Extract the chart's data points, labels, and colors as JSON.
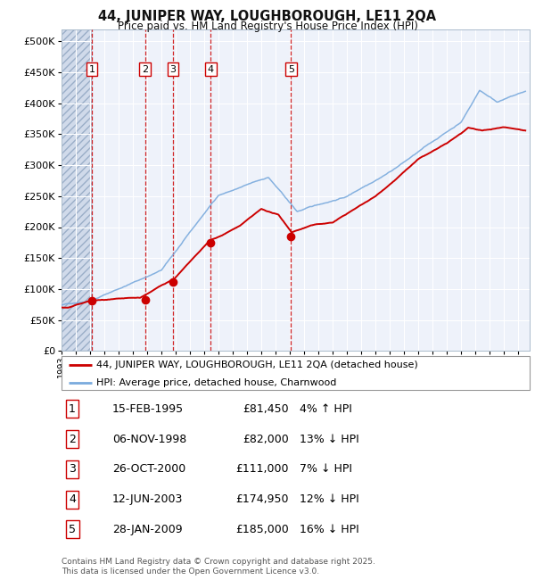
{
  "title": "44, JUNIPER WAY, LOUGHBOROUGH, LE11 2QA",
  "subtitle": "Price paid vs. HM Land Registry's House Price Index (HPI)",
  "xlim": [
    1993.0,
    2025.8
  ],
  "ylim": [
    0,
    520000
  ],
  "yticks": [
    0,
    50000,
    100000,
    150000,
    200000,
    250000,
    300000,
    350000,
    400000,
    450000,
    500000
  ],
  "ytick_labels": [
    "£0",
    "£50K",
    "£100K",
    "£150K",
    "£200K",
    "£250K",
    "£300K",
    "£350K",
    "£400K",
    "£450K",
    "£500K"
  ],
  "plot_bg": "#eef2fa",
  "hatch_color": "#d0daea",
  "grid_color": "#ffffff",
  "sale_dates": [
    1995.12,
    1998.85,
    2000.82,
    2003.45,
    2009.08
  ],
  "sale_prices": [
    81450,
    82000,
    111000,
    174950,
    185000
  ],
  "sale_labels": [
    "1",
    "2",
    "3",
    "4",
    "5"
  ],
  "red_line_color": "#cc0000",
  "blue_line_color": "#7aaadd",
  "dot_color": "#cc0000",
  "vline_color": "#cc0000",
  "legend_items": [
    "44, JUNIPER WAY, LOUGHBOROUGH, LE11 2QA (detached house)",
    "HPI: Average price, detached house, Charnwood"
  ],
  "table_rows": [
    [
      "1",
      "15-FEB-1995",
      "£81,450",
      "4% ↑ HPI"
    ],
    [
      "2",
      "06-NOV-1998",
      "£82,000",
      "13% ↓ HPI"
    ],
    [
      "3",
      "26-OCT-2000",
      "£111,000",
      "7% ↓ HPI"
    ],
    [
      "4",
      "12-JUN-2003",
      "£174,950",
      "12% ↓ HPI"
    ],
    [
      "5",
      "28-JAN-2009",
      "£185,000",
      "16% ↓ HPI"
    ]
  ],
  "footer": "Contains HM Land Registry data © Crown copyright and database right 2025.\nThis data is licensed under the Open Government Licence v3.0."
}
